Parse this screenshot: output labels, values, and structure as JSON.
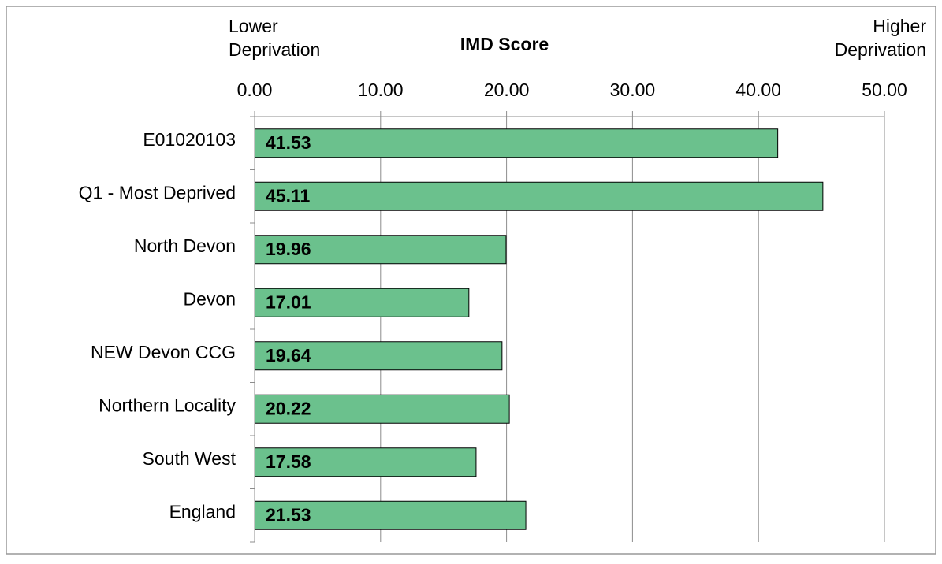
{
  "chart_data": {
    "type": "barh",
    "title": "IMD Score",
    "left_label": [
      "Lower",
      "Deprivation"
    ],
    "right_label": [
      "Higher",
      "Deprivation"
    ],
    "categories": [
      "E01020103",
      "Q1 - Most Deprived",
      "North Devon",
      "Devon",
      "NEW Devon CCG",
      "Northern Locality",
      "South West",
      "England"
    ],
    "values": [
      41.53,
      45.11,
      19.96,
      17.01,
      19.64,
      20.22,
      17.58,
      21.53
    ],
    "color": "#6bc18d",
    "xlim": [
      0,
      50
    ],
    "xticks": [
      {
        "value": 0,
        "label": "0.00"
      },
      {
        "value": 10,
        "label": "10.00"
      },
      {
        "value": 20,
        "label": "20.00"
      },
      {
        "value": 30,
        "label": "30.00"
      },
      {
        "value": 40,
        "label": "40.00"
      },
      {
        "value": 50,
        "label": "50.00"
      }
    ],
    "grid": true
  }
}
